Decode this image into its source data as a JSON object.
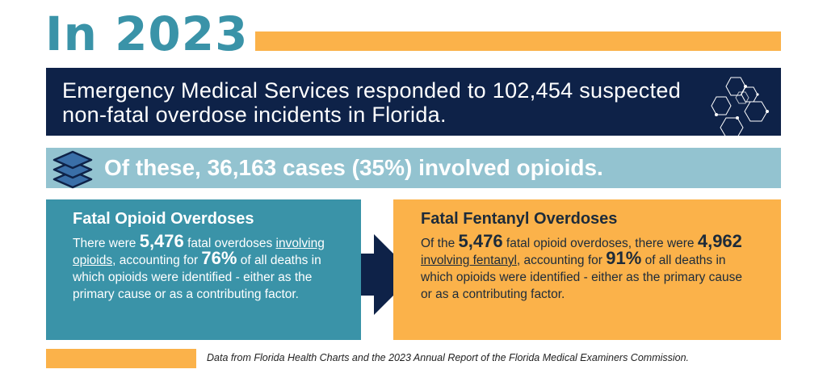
{
  "header": {
    "title": "In 2023",
    "accent_color": "#fbb24a",
    "title_color": "#3a93a8"
  },
  "ems": {
    "text": "Emergency Medical Services responded to 102,454 suspected non-fatal overdose incidents in Florida.",
    "background_color": "#0e2248",
    "icon": "hexagon-network-icon"
  },
  "opioid_banner": {
    "text": "Of these, 36,163 cases (35%) involved opioids.",
    "background_color": "#93c3d0",
    "icon": "layers-stack-icon"
  },
  "fatal_opioid": {
    "heading": "Fatal Opioid Overdoses",
    "p1": "There were ",
    "count": "5,476",
    "p2": " fatal overdoses ",
    "link": "involving opioids",
    "p3": ", accounting for ",
    "percent": "76%",
    "p4": " of all deaths in which opioids were identified - either as the primary cause or as a contributing factor.",
    "background_color": "#3a93a8"
  },
  "arrow": {
    "icon": "right-arrow-icon",
    "color": "#0e2248"
  },
  "fatal_fentanyl": {
    "heading": "Fatal Fentanyl Overdoses",
    "p1": "Of the ",
    "total": "5,476",
    "p2": " fatal opioid overdoses, there were ",
    "count": "4,962",
    "p3": " ",
    "link": "involving fentanyl",
    "p4": ", accounting for ",
    "percent": "91%",
    "p5": " of all deaths in which opioids were identified - either as the primary cause or as a contributing factor.",
    "background_color": "#fbb24a"
  },
  "footer": {
    "source": "Data from Florida Health Charts and the 2023 Annual Report of the Florida Medical Examiners Commission."
  }
}
